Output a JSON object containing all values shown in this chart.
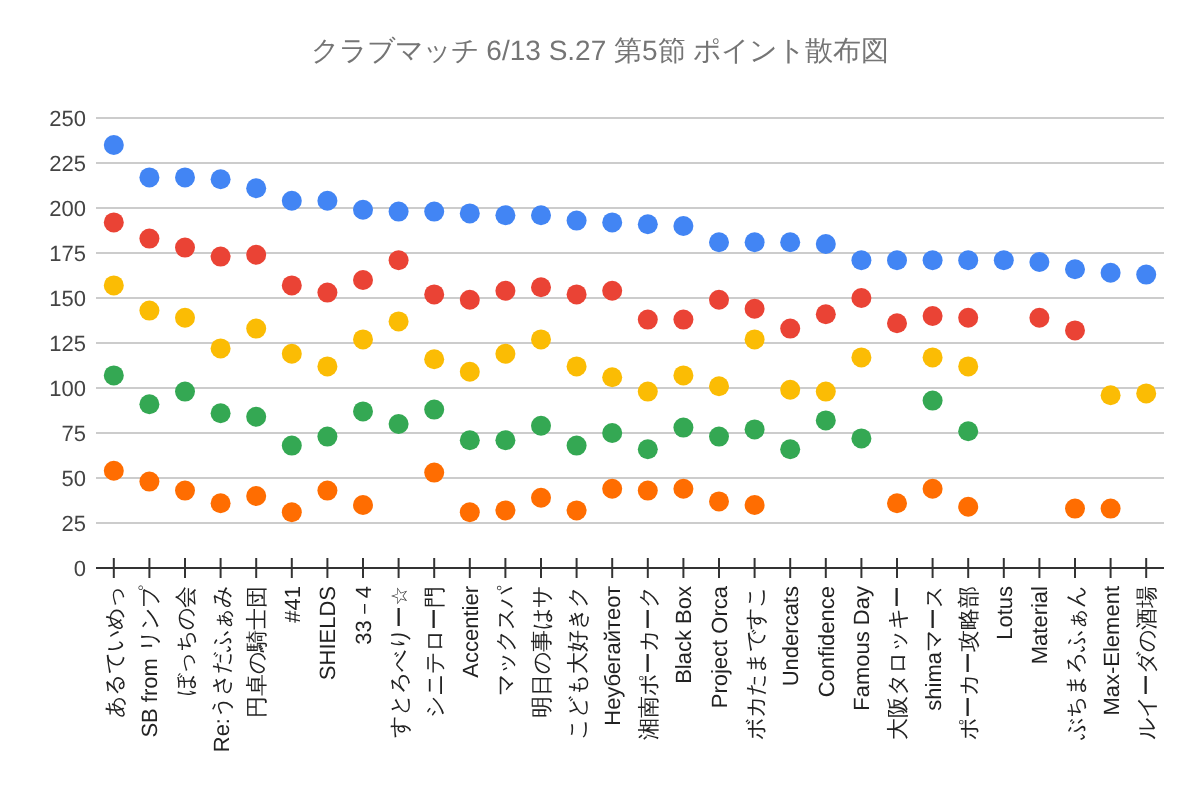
{
  "chart_data": {
    "type": "scatter",
    "title": "クラブマッチ 6/13 S.27 第5節 ポイント散布図",
    "categories": [
      "あるていめっ",
      "SB from リンプ",
      "ぼっちの会",
      "Re:うさだふぁみ",
      "円卓の騎士団",
      "#41",
      "SHIELDS",
      "33－4",
      "すとろべりー☆",
      "シニテロー門",
      "Accentier",
      "マックスパ",
      "明日の事はサ",
      "こども大好きク",
      "Неубегайтеот",
      "湘南ポーカーク",
      "Black Box",
      "Project Orca",
      "ボカたまですこ",
      "Undercats",
      "Confidence",
      "Famous Day",
      "大阪タロッキー",
      "shimaマース",
      "ポーカー攻略部",
      "Lotus",
      "Material",
      "ぶちまろふぁん",
      "Max-Element",
      "ルイーダの酒場"
    ],
    "series": [
      {
        "color": "#4285f4",
        "values": [
          235,
          217,
          217,
          216,
          211,
          204,
          204,
          199,
          198,
          198,
          197,
          196,
          196,
          193,
          192,
          191,
          190,
          181,
          181,
          181,
          180,
          171,
          171,
          171,
          171,
          171,
          170,
          166,
          164,
          163
        ]
      },
      {
        "color": "#ea4335",
        "values": [
          192,
          183,
          178,
          173,
          174,
          157,
          153,
          160,
          171,
          152,
          149,
          154,
          156,
          152,
          154,
          138,
          138,
          149,
          144,
          133,
          141,
          150,
          136,
          140,
          139,
          null,
          139,
          132,
          null,
          null
        ]
      },
      {
        "color": "#fbbc04",
        "values": [
          157,
          143,
          139,
          122,
          133,
          119,
          112,
          127,
          137,
          116,
          109,
          119,
          127,
          112,
          106,
          98,
          107,
          101,
          127,
          99,
          98,
          117,
          null,
          117,
          112,
          null,
          null,
          null,
          96,
          97
        ]
      },
      {
        "color": "#34a853",
        "values": [
          107,
          91,
          98,
          86,
          84,
          68,
          73,
          87,
          80,
          88,
          71,
          71,
          79,
          68,
          75,
          66,
          78,
          73,
          77,
          66,
          82,
          72,
          null,
          93,
          76,
          null,
          null,
          null,
          null,
          null
        ]
      },
      {
        "color": "#ff6d01",
        "values": [
          54,
          48,
          43,
          36,
          40,
          31,
          43,
          35,
          null,
          53,
          31,
          32,
          39,
          32,
          44,
          43,
          44,
          37,
          35,
          null,
          null,
          null,
          36,
          44,
          34,
          null,
          null,
          33,
          33,
          null
        ]
      }
    ],
    "ylim": [
      0,
      250
    ],
    "yticks": [
      0,
      25,
      50,
      75,
      100,
      125,
      150,
      175,
      200,
      225,
      250
    ],
    "grid": "y",
    "marker": "circle"
  }
}
